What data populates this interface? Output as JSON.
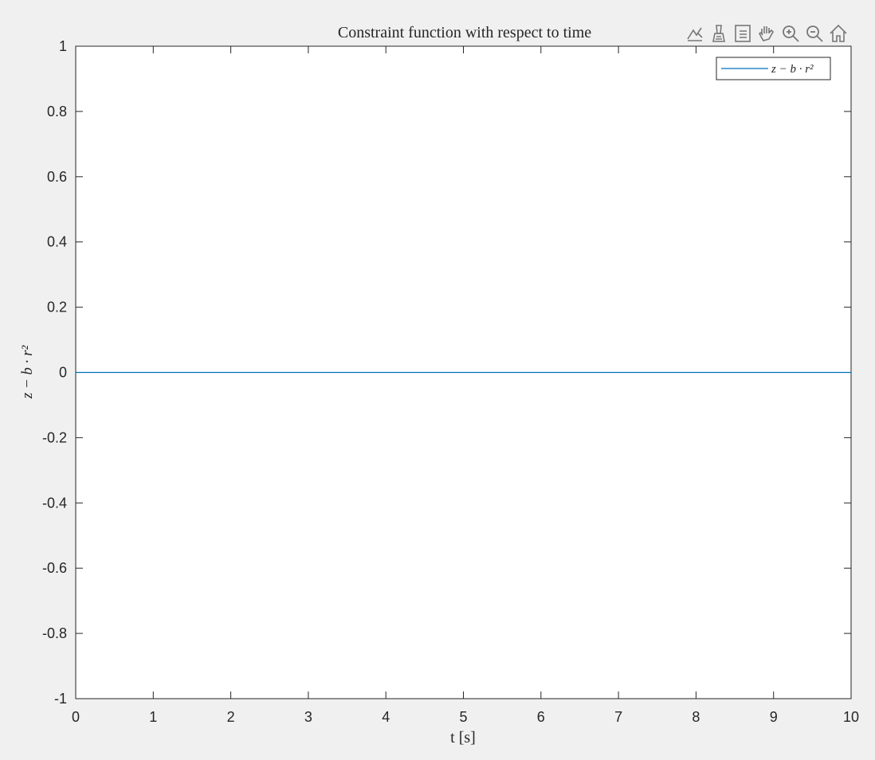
{
  "toolbar": {
    "icons": [
      "data-tips-icon",
      "brush-icon",
      "export-icon",
      "pan-hand-icon",
      "zoom-in-icon",
      "zoom-out-icon",
      "home-icon"
    ]
  },
  "chart_data": {
    "type": "line",
    "title": "Constraint function with respect to time",
    "xlabel": "t [s]",
    "ylabel": "z − b · r²",
    "xlim": [
      0,
      10
    ],
    "ylim": [
      -1,
      1
    ],
    "xticks": [
      0,
      1,
      2,
      3,
      4,
      5,
      6,
      7,
      8,
      9,
      10
    ],
    "yticks": [
      -1,
      -0.8,
      -0.6,
      -0.4,
      -0.2,
      0,
      0.2,
      0.4,
      0.6,
      0.8,
      1
    ],
    "xtick_labels": [
      "0",
      "1",
      "2",
      "3",
      "4",
      "5",
      "6",
      "7",
      "8",
      "9",
      "10"
    ],
    "ytick_labels": [
      "-1",
      "-0.8",
      "-0.6",
      "-0.4",
      "-0.2",
      "0",
      "0.2",
      "0.4",
      "0.6",
      "0.8",
      "1"
    ],
    "grid": false,
    "legend_position": "top-right",
    "series": [
      {
        "name": "z − b · r²",
        "color": "#0072bd",
        "x": [
          0,
          10
        ],
        "y": [
          0,
          0
        ]
      }
    ]
  }
}
